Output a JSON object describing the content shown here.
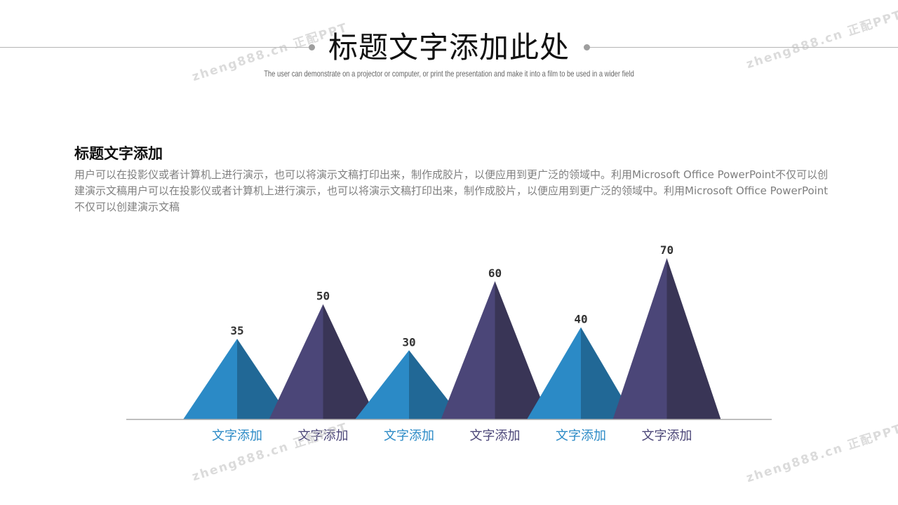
{
  "header": {
    "title": "标题文字添加此处",
    "subtitle": "The user can demonstrate on a projector or computer, or print the presentation and make it into a film to be used in a wider field"
  },
  "section": {
    "title": "标题文字添加",
    "body": "用户可以在投影仪或者计算机上进行演示，也可以将演示文稿打印出来，制作成胶片，以便应用到更广泛的领域中。利用Microsoft Office PowerPoint不仅可以创建演示文稿用户可以在投影仪或者计算机上进行演示，也可以将演示文稿打印出来，制作成胶片，以便应用到更广泛的领域中。利用Microsoft Office PowerPoint不仅可以创建演示文稿"
  },
  "watermark": "zheng888.cn 正配PPT",
  "colors": {
    "blue_light": "#2b8ac6",
    "blue_dark": "#216896",
    "purple_light": "#4b4678",
    "purple_dark": "#393556",
    "value_label": "#333333",
    "baseline": "#aaaaaa"
  },
  "chart_data": {
    "type": "bar",
    "style": "triangle-pyramid",
    "categories": [
      "文字添加",
      "文字添加",
      "文字添加",
      "文字添加",
      "文字添加",
      "文字添加"
    ],
    "values": [
      35,
      50,
      30,
      60,
      40,
      70
    ],
    "point_colors": [
      "blue",
      "purple",
      "blue",
      "purple",
      "blue",
      "purple"
    ],
    "ylim": [
      0,
      70
    ],
    "grid": false,
    "legend": "none",
    "title": "",
    "xlabel": "",
    "ylabel": ""
  }
}
